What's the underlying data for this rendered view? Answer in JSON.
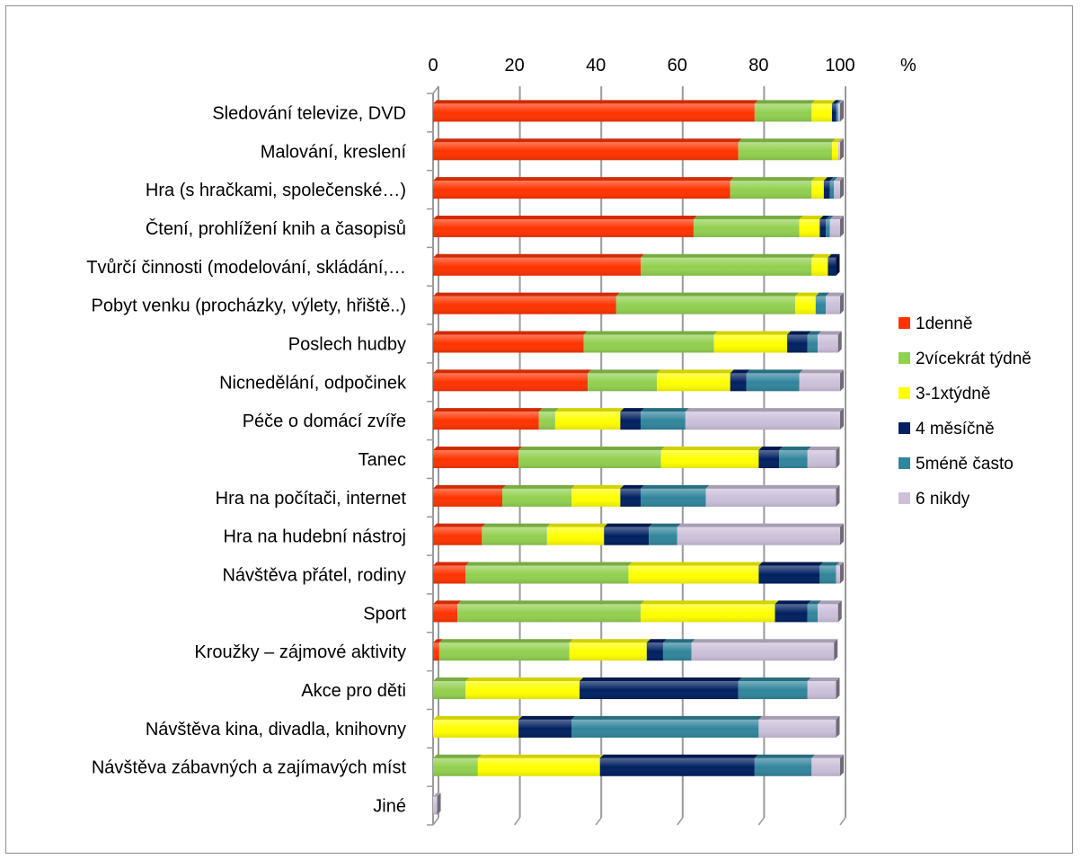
{
  "chart_data": {
    "type": "bar",
    "orientation": "horizontal",
    "stacked": true,
    "unit_label": "%",
    "xlim": [
      0,
      100
    ],
    "x_ticks": [
      "0",
      "20",
      "40",
      "60",
      "80",
      "100"
    ],
    "grid": true,
    "legend_position": "right",
    "categories": [
      "Sledování televize, DVD",
      "Malování, kreslení",
      "Hra (s hračkami, společenské…)",
      "Čtení, prohlížení knih a časopisů",
      "Tvůrčí činnosti (modelování, skládání,…",
      "Pobyt venku (procházky, výlety, hřiště..)",
      "Poslech hudby",
      "Nicnedělání, odpočinek",
      "Péče o domácí zvíře",
      "Tanec",
      "Hra na počítači, internet",
      "Hra na hudební nástroj",
      "Návštěva přátel, rodiny",
      "Sport",
      "Kroužky – zájmové aktivity",
      "Akce pro děti",
      "Návštěva kina, divadla, knihovny",
      "Návštěva zábavných a zajímavých míst",
      "Jiné"
    ],
    "series": [
      {
        "name": "1denně",
        "color": "#ff3300",
        "values": [
          79,
          75,
          73,
          64,
          51,
          45,
          37,
          38,
          26,
          21,
          17,
          12,
          8,
          6,
          1.5,
          0,
          0,
          0,
          0
        ]
      },
      {
        "name": "2vícekrát týdně",
        "color": "#92d050",
        "values": [
          14,
          23,
          20,
          26,
          42,
          44,
          32,
          17,
          4,
          35,
          17,
          16,
          40,
          45,
          32,
          8,
          0,
          11,
          0
        ]
      },
      {
        "name": "3-1xtýdně",
        "color": "#ffff00",
        "values": [
          5,
          1.5,
          3,
          5,
          4,
          5,
          18,
          18,
          16,
          24,
          12,
          14,
          32,
          33,
          19,
          28,
          21,
          30,
          0
        ]
      },
      {
        "name": "4 měsíčně",
        "color": "#002060",
        "values": [
          1,
          0,
          1.5,
          1.5,
          2,
          0,
          5,
          4,
          5,
          5,
          5,
          11,
          15,
          8,
          4,
          39,
          13,
          38,
          0
        ]
      },
      {
        "name": "5méně často",
        "color": "#31859c",
        "values": [
          0.5,
          0,
          1,
          1,
          0,
          2.5,
          2.5,
          13,
          11,
          7,
          16,
          7,
          4,
          2.5,
          7,
          17,
          46,
          14,
          0
        ]
      },
      {
        "name": "6 nikdy",
        "color": "#ccc0da",
        "values": [
          0.5,
          0.5,
          1.5,
          2.5,
          0,
          3.5,
          5,
          10,
          38,
          7,
          32,
          40,
          1,
          5,
          35,
          7,
          19,
          7,
          1
        ]
      }
    ]
  }
}
